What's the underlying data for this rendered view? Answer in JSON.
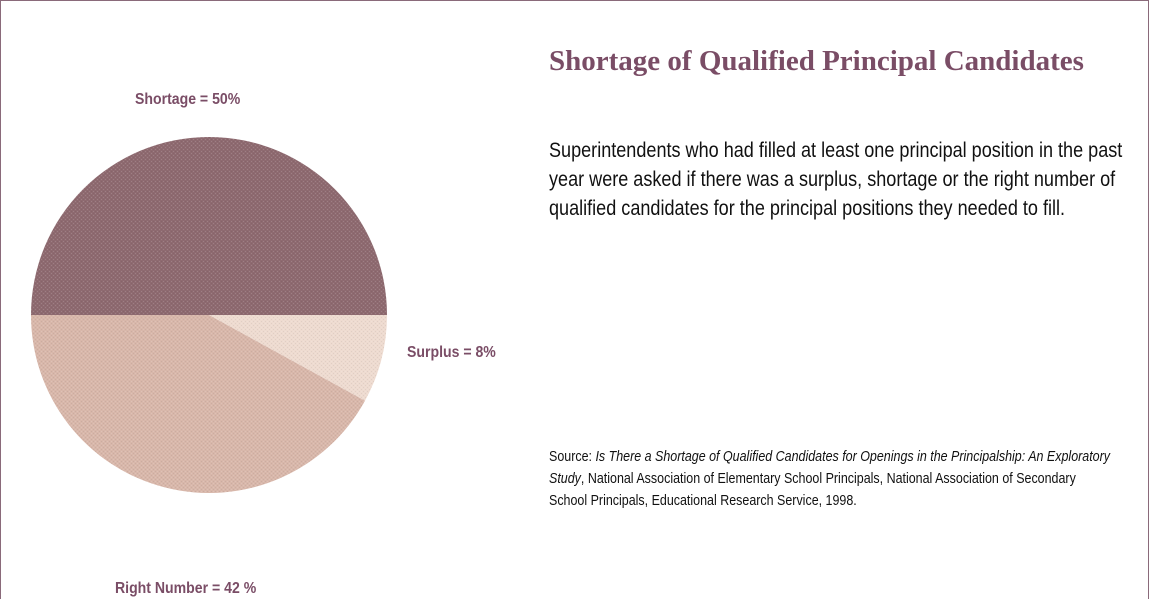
{
  "title": "Shortage of Qualified Principal Candidates",
  "description": "Superintendents who had filled at least one principal position in the past year were asked if there was a surplus, shortage or the right number of qualified candidates for the principal positions they needed to fill.",
  "source": {
    "prefix": "Source: ",
    "study_title": "Is There a Shortage of Qualified Candidates for Openings in the Principalship: An Exploratory Study",
    "rest": ", National Association of Elementary School Principals, National Association of Secondary School Principals, Educational Research Service, 1998."
  },
  "colors": {
    "accent": "#7a4d66",
    "frame": "#8a6a7a"
  },
  "chart_data": {
    "type": "pie",
    "slices": [
      {
        "name": "Shortage",
        "label": "Shortage = 50%",
        "value": 50,
        "color": "#8e6a70"
      },
      {
        "name": "Surplus",
        "label": "Surplus = 8%",
        "value": 8,
        "color": "#eedbd0"
      },
      {
        "name": "Right Number",
        "label": "Right Number = 42 %",
        "value": 42,
        "color": "#d8b7aa"
      }
    ]
  }
}
